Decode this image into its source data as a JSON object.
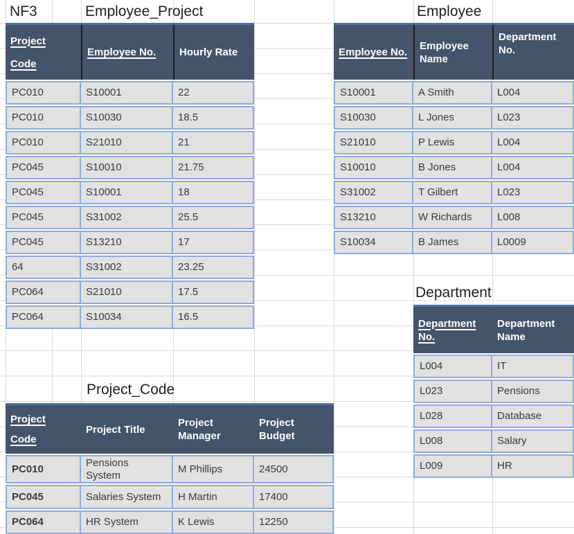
{
  "labels": {
    "nf3": "NF3"
  },
  "tables": {
    "employee_project": {
      "title": "Employee_Project",
      "headers": [
        "Project Code",
        "Employee No.",
        "Hourly Rate"
      ],
      "key_columns": [
        "Project Code",
        "Employee No."
      ],
      "rows": [
        [
          "PC010",
          "S10001",
          "22"
        ],
        [
          "PC010",
          "S10030",
          "18.5"
        ],
        [
          "PC010",
          "S21010",
          "21"
        ],
        [
          "PC045",
          "S10010",
          "21.75"
        ],
        [
          "PC045",
          "S10001",
          "18"
        ],
        [
          "PC045",
          "S31002",
          "25.5"
        ],
        [
          "PC045",
          "S13210",
          "17"
        ],
        [
          "64",
          "S31002",
          "23.25"
        ],
        [
          "PC064",
          "S21010",
          "17.5"
        ],
        [
          "PC064",
          "S10034",
          "16.5"
        ]
      ]
    },
    "employee": {
      "title": "Employee",
      "headers": [
        "Employee No.",
        "Employee Name",
        "Department No."
      ],
      "key_columns": [
        "Employee No."
      ],
      "rows": [
        [
          "S10001",
          "A Smith",
          "L004"
        ],
        [
          "S10030",
          "L Jones",
          "L023"
        ],
        [
          "S21010",
          "P Lewis",
          "L004"
        ],
        [
          "S10010",
          "B Jones",
          "L004"
        ],
        [
          "S31002",
          "T Gilbert",
          "L023"
        ],
        [
          "S13210",
          "W Richards",
          "L008"
        ],
        [
          "S10034",
          "B James",
          "L0009"
        ]
      ]
    },
    "department": {
      "title": "Department",
      "headers": [
        "Department No.",
        "Department Name"
      ],
      "key_columns": [
        "Department No."
      ],
      "rows": [
        [
          "L004",
          "IT"
        ],
        [
          "L023",
          "Pensions"
        ],
        [
          "L028",
          "Database"
        ],
        [
          "L008",
          "Salary"
        ],
        [
          "L009",
          "HR"
        ]
      ]
    },
    "project_code": {
      "title": "Project_Code",
      "headers": [
        "Project Code",
        "Project Title",
        "Project Manager",
        "Project Budget"
      ],
      "key_columns": [
        "Project Code"
      ],
      "rows": [
        [
          "PC010",
          "Pensions System",
          "M Phillips",
          "24500"
        ],
        [
          "PC045",
          "Salaries System",
          "H Martin",
          "17400"
        ],
        [
          "PC064",
          "HR System",
          "K Lewis",
          "12250"
        ]
      ]
    }
  },
  "colors": {
    "header_bg": "#44546A",
    "header_top_border": "#4A6FA5",
    "header_text": "#FFFFFF",
    "cell_fill": "#E2E1E1",
    "table_border": "#8EAADB",
    "body_text": "#3A3A3A",
    "gridline": "#D9D9D9"
  }
}
